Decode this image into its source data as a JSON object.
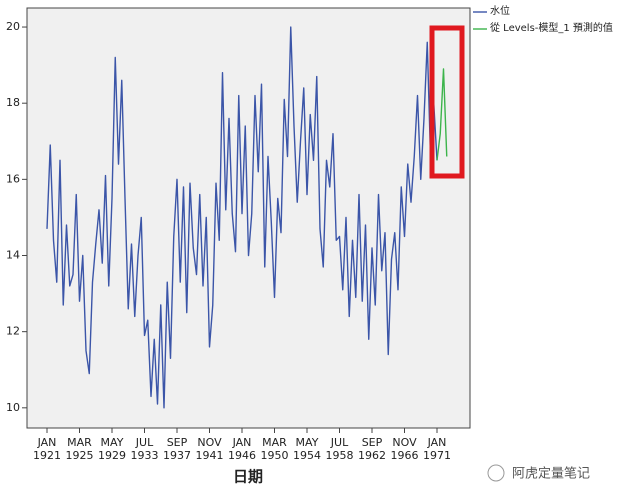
{
  "chart_data": {
    "type": "line",
    "x_label": "日期",
    "categories": [
      "JAN 1921",
      null,
      null,
      null,
      null,
      null,
      null,
      null,
      null,
      null,
      "MAR 1925",
      null,
      null,
      null,
      null,
      null,
      null,
      null,
      null,
      null,
      "MAY 1929",
      null,
      null,
      null,
      null,
      null,
      null,
      null,
      null,
      null,
      "JUL 1933",
      null,
      null,
      null,
      null,
      null,
      null,
      null,
      null,
      null,
      "SEP 1937",
      null,
      null,
      null,
      null,
      null,
      null,
      null,
      null,
      null,
      "NOV 1941",
      null,
      null,
      null,
      null,
      null,
      null,
      null,
      null,
      null,
      "JAN 1946",
      null,
      null,
      null,
      null,
      null,
      null,
      null,
      null,
      null,
      "MAR 1950",
      null,
      null,
      null,
      null,
      null,
      null,
      null,
      null,
      null,
      "MAY 1954",
      null,
      null,
      null,
      null,
      null,
      null,
      null,
      null,
      null,
      "JUL 1958",
      null,
      null,
      null,
      null,
      null,
      null,
      null,
      null,
      null,
      "SEP 1962",
      null,
      null,
      null,
      null,
      null,
      null,
      null,
      null,
      null,
      "NOV 1966",
      null,
      null,
      null,
      null,
      null,
      null,
      null,
      null,
      null,
      "JAN 1971",
      null,
      null,
      null
    ],
    "series": [
      {
        "name": "水位",
        "color": "#3b55a8",
        "values": [
          14.7,
          16.9,
          14.4,
          13.3,
          16.5,
          12.7,
          14.8,
          13.2,
          13.5,
          15.6,
          12.8,
          14.0,
          11.5,
          10.9,
          13.3,
          14.3,
          15.2,
          13.8,
          16.1,
          13.2,
          15.5,
          19.2,
          16.4,
          18.6,
          15.5,
          12.6,
          14.3,
          12.4,
          14.0,
          15.0,
          11.9,
          12.3,
          10.3,
          11.8,
          10.1,
          12.7,
          10.0,
          13.3,
          11.3,
          14.5,
          16.0,
          13.3,
          15.8,
          12.5,
          15.9,
          14.2,
          13.5,
          15.6,
          13.2,
          15.0,
          11.6,
          12.7,
          15.9,
          14.4,
          18.8,
          15.2,
          17.6,
          15.1,
          14.1,
          18.2,
          15.1,
          17.4,
          14.0,
          15.1,
          18.2,
          16.2,
          18.5,
          13.7,
          16.6,
          14.9,
          12.9,
          15.5,
          14.6,
          18.1,
          16.6,
          20.0,
          17.4,
          15.4,
          17.0,
          18.4,
          15.6,
          17.7,
          16.5,
          18.7,
          14.7,
          13.7,
          16.5,
          15.8,
          17.2,
          14.4,
          14.5,
          13.1,
          15.0,
          12.4,
          14.4,
          12.9,
          15.6,
          12.8,
          14.8,
          11.8,
          14.2,
          12.7,
          15.6,
          13.6,
          14.6,
          11.4,
          13.9,
          14.6,
          13.1,
          15.8,
          14.5,
          16.4,
          15.4,
          16.6,
          18.2,
          16.0,
          17.6,
          19.6,
          16.6,
          18.0,
          16.5,
          null,
          null,
          null
        ]
      },
      {
        "name": "從 Levels-模型_1 預測的值",
        "color": "#3cb44b",
        "values": [
          null,
          null,
          null,
          null,
          null,
          null,
          null,
          null,
          null,
          null,
          null,
          null,
          null,
          null,
          null,
          null,
          null,
          null,
          null,
          null,
          null,
          null,
          null,
          null,
          null,
          null,
          null,
          null,
          null,
          null,
          null,
          null,
          null,
          null,
          null,
          null,
          null,
          null,
          null,
          null,
          null,
          null,
          null,
          null,
          null,
          null,
          null,
          null,
          null,
          null,
          null,
          null,
          null,
          null,
          null,
          null,
          null,
          null,
          null,
          null,
          null,
          null,
          null,
          null,
          null,
          null,
          null,
          null,
          null,
          null,
          null,
          null,
          null,
          null,
          null,
          null,
          null,
          null,
          null,
          null,
          null,
          null,
          null,
          null,
          null,
          null,
          null,
          null,
          null,
          null,
          null,
          null,
          null,
          null,
          null,
          null,
          null,
          null,
          null,
          null,
          null,
          null,
          null,
          null,
          null,
          null,
          null,
          null,
          null,
          null,
          null,
          null,
          null,
          null,
          null,
          null,
          null,
          null,
          null,
          null,
          16.5,
          17.2,
          18.9,
          16.6
        ]
      }
    ],
    "ylim": [
      9.47,
      20.5
    ],
    "yticks": [
      10,
      12,
      14,
      16,
      18,
      20
    ],
    "watermark": "阿虎定量笔记"
  }
}
